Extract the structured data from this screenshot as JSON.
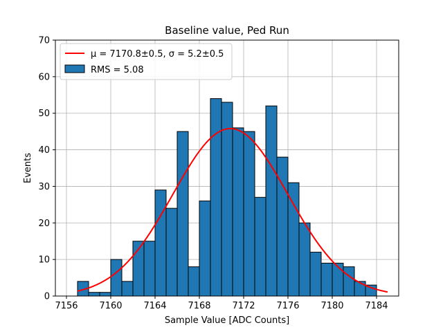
{
  "chart_data": {
    "type": "bar",
    "title": "Baseline value, Ped Run",
    "xlabel": "Sample Value [ADC Counts]",
    "ylabel": "Events",
    "xlim": [
      7155,
      7186
    ],
    "ylim": [
      0,
      70
    ],
    "xticks": [
      7156,
      7160,
      7164,
      7168,
      7172,
      7176,
      7180,
      7184
    ],
    "yticks": [
      0,
      10,
      20,
      30,
      40,
      50,
      60,
      70
    ],
    "grid": true,
    "legend_position": "top-left",
    "bin_width": 1,
    "bin_left_edges": [
      7157,
      7158,
      7159,
      7160,
      7161,
      7162,
      7163,
      7164,
      7165,
      7166,
      7167,
      7168,
      7169,
      7170,
      7171,
      7172,
      7173,
      7174,
      7175,
      7176,
      7177,
      7178,
      7179,
      7180,
      7181,
      7182,
      7183
    ],
    "values": [
      4,
      1,
      1,
      10,
      4,
      15,
      15,
      29,
      24,
      45,
      8,
      26,
      54,
      53,
      46,
      45,
      27,
      52,
      38,
      31,
      20,
      12,
      9,
      9,
      8,
      4,
      3
    ],
    "bar_color": "#1f77b4",
    "fit": {
      "label": "μ = 7170.8±0.5, σ = 5.2±0.5",
      "mu": 7170.8,
      "sigma": 5.2,
      "amplitude": 45.8,
      "x_range": [
        7157,
        7185
      ],
      "color": "#ff0000"
    },
    "legend": [
      {
        "kind": "line",
        "text": "μ = 7170.8±0.5, σ = 5.2±0.5",
        "color": "#ff0000"
      },
      {
        "kind": "patch",
        "text": "RMS = 5.08",
        "color": "#1f77b4"
      }
    ]
  }
}
